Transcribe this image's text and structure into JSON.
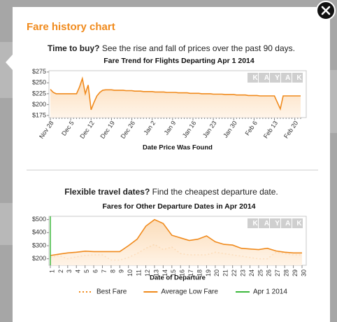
{
  "header": {
    "title": "Fare history chart"
  },
  "sections": [
    {
      "lead": "Time to buy?",
      "text": "See the rise and fall of prices over the past 90 days."
    },
    {
      "lead": "Flexible travel dates?",
      "text": "Find the cheapest departure date."
    }
  ],
  "chart_data": [
    {
      "type": "line",
      "title": "Fare Trend for Flights Departing Apr 1 2014",
      "watermark": "KAYAK",
      "x_label": "Date Price Was Found",
      "categories": [
        "Nov 28",
        null,
        null,
        null,
        null,
        null,
        null,
        "Dec 5",
        null,
        null,
        null,
        null,
        null,
        null,
        "Dec 12",
        null,
        null,
        null,
        null,
        null,
        null,
        "Dec 19",
        null,
        null,
        null,
        null,
        null,
        null,
        "Dec 26",
        null,
        null,
        null,
        null,
        null,
        null,
        "Jan 2",
        null,
        null,
        null,
        null,
        null,
        null,
        "Jan 9",
        null,
        null,
        null,
        null,
        null,
        null,
        "Jan 16",
        null,
        null,
        null,
        null,
        null,
        null,
        "Jan 23",
        null,
        null,
        null,
        null,
        null,
        null,
        "Jan 30",
        null,
        null,
        null,
        null,
        null,
        null,
        "Feb 6",
        null,
        null,
        null,
        null,
        null,
        null,
        "Feb 13",
        null,
        null,
        null,
        null,
        null,
        null,
        "Feb 20",
        null,
        null
      ],
      "series": [
        {
          "color": "#f08a1c",
          "area": true,
          "values": [
            235,
            228,
            225,
            225,
            225,
            225,
            225,
            225,
            225,
            225,
            240,
            260,
            225,
            245,
            188,
            205,
            220,
            228,
            233,
            234,
            234,
            234,
            233,
            233,
            233,
            233,
            232,
            232,
            232,
            231,
            231,
            231,
            230,
            230,
            230,
            230,
            229,
            229,
            229,
            229,
            228,
            228,
            228,
            228,
            227,
            227,
            227,
            227,
            226,
            226,
            226,
            226,
            225,
            225,
            225,
            225,
            224,
            224,
            224,
            224,
            223,
            223,
            223,
            223,
            222,
            222,
            222,
            222,
            221,
            221,
            221,
            221,
            220,
            220,
            220,
            220,
            220,
            220,
            205,
            190,
            220,
            220,
            220,
            220,
            220,
            220,
            220
          ]
        }
      ],
      "ylim": [
        170,
        278
      ],
      "yticks": [
        {
          "value": 175,
          "label": "$175"
        },
        {
          "value": 200,
          "label": "$200"
        },
        {
          "value": 225,
          "label": "$225"
        },
        {
          "value": 250,
          "label": "$250"
        },
        {
          "value": 275,
          "label": "$275"
        }
      ],
      "grid": false
    },
    {
      "type": "line",
      "title": "Fares for Other Departure Dates in Apr 2014",
      "watermark": "KAYAK",
      "x_label": "Date of Departure",
      "categories": [
        "1",
        "2",
        "3",
        "4",
        "5",
        "6",
        "7",
        "8",
        "9",
        "10",
        "11",
        "12",
        "13",
        "14",
        "15",
        "16",
        "17",
        "18",
        "19",
        "20",
        "21",
        "22",
        "23",
        "24",
        "25",
        "26",
        "27",
        "28",
        "29",
        "30"
      ],
      "series": [
        {
          "name": "Best Fare",
          "color": "#f08a1c",
          "dash": true,
          "area": true,
          "values": [
            210,
            225,
            200,
            215,
            225,
            230,
            230,
            190,
            190,
            210,
            240,
            280,
            310,
            270,
            290,
            240,
            230,
            230,
            230,
            250,
            240,
            230,
            220,
            210,
            200,
            200,
            250,
            240,
            230,
            230
          ]
        },
        {
          "name": "Average Low Fare",
          "color": "#f08a1c",
          "area": true,
          "values": [
            225,
            235,
            245,
            250,
            258,
            255,
            255,
            255,
            255,
            300,
            350,
            450,
            500,
            470,
            380,
            360,
            340,
            350,
            375,
            330,
            310,
            305,
            280,
            275,
            270,
            280,
            260,
            250,
            245,
            245
          ]
        }
      ],
      "marker": {
        "name": "Apr 1 2014",
        "color": "#3cb83c",
        "category": "1"
      },
      "ylim": [
        150,
        525
      ],
      "yticks": [
        {
          "value": 200,
          "label": "$200"
        },
        {
          "value": 300,
          "label": "$300"
        },
        {
          "value": 400,
          "label": "$400"
        },
        {
          "value": 500,
          "label": "$500"
        }
      ],
      "grid": false,
      "legend": "bottom"
    }
  ]
}
